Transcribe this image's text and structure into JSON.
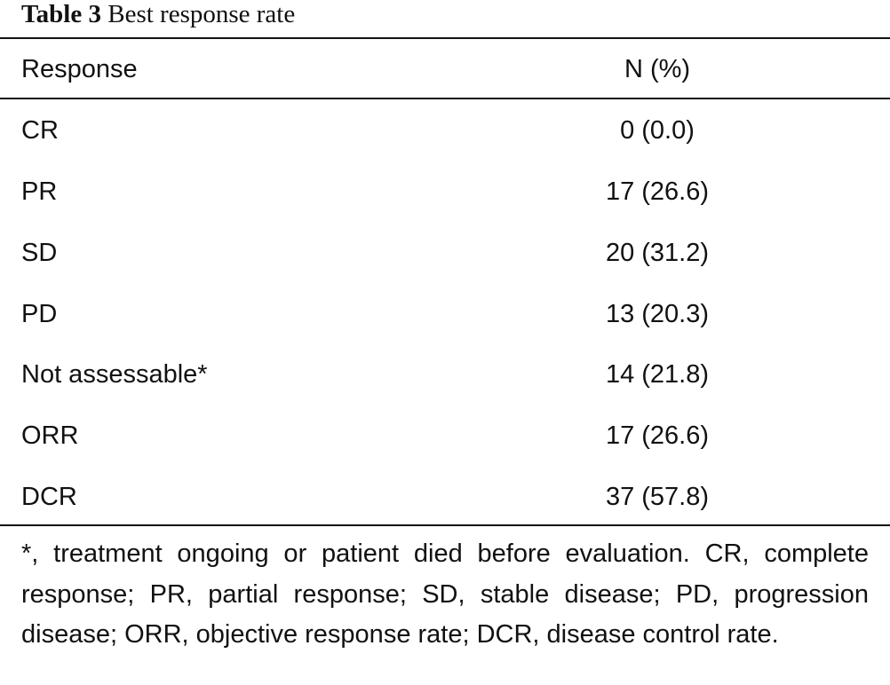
{
  "caption": {
    "label": "Table 3",
    "title": "Best response rate"
  },
  "table": {
    "headers": [
      "Response",
      "N (%)"
    ],
    "rows": [
      [
        "CR",
        "0 (0.0)"
      ],
      [
        "PR",
        "17 (26.6)"
      ],
      [
        "SD",
        "20 (31.2)"
      ],
      [
        "PD",
        "13 (20.3)"
      ],
      [
        "Not assessable*",
        "14 (21.8)"
      ],
      [
        "ORR",
        "17 (26.6)"
      ],
      [
        "DCR",
        "37 (57.8)"
      ]
    ]
  },
  "footnote": "*, treatment ongoing or patient died before evaluation. CR, complete response; PR, partial response; SD, stable disease; PD, progression disease; ORR, objective response rate; DCR, disease control rate."
}
